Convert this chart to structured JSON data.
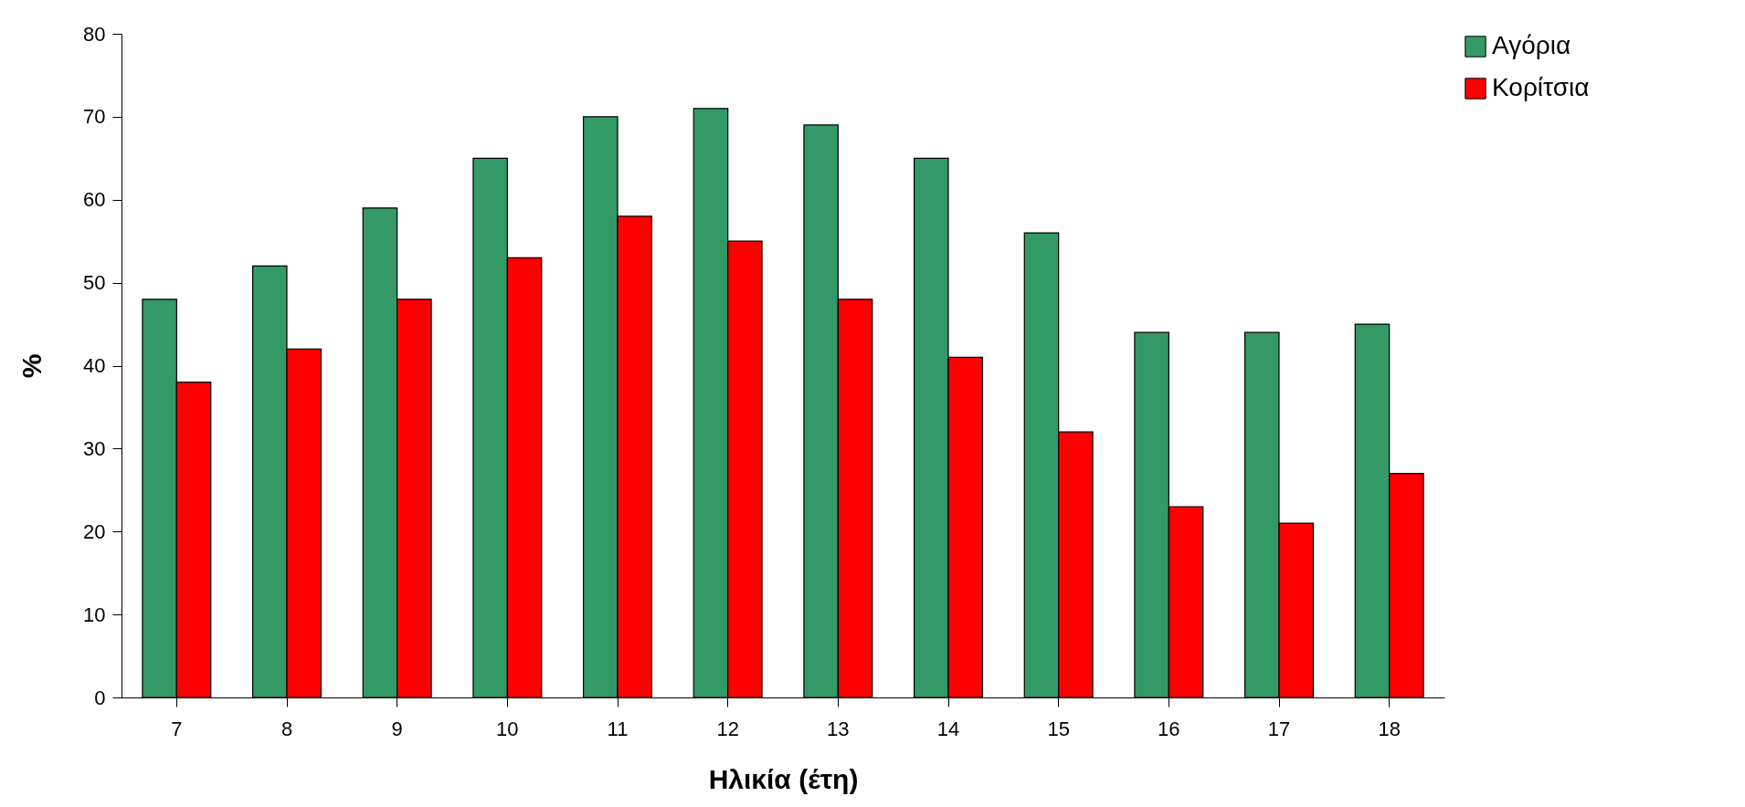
{
  "chart_data": {
    "type": "bar",
    "xlabel": "Ηλικία (έτη)",
    "ylabel": "%",
    "categories": [
      "7",
      "8",
      "9",
      "10",
      "11",
      "12",
      "13",
      "14",
      "15",
      "16",
      "17",
      "18"
    ],
    "series": [
      {
        "name": "Αγόρια",
        "color": "#339966",
        "values": [
          48,
          52,
          59,
          65,
          70,
          71,
          69,
          65,
          56,
          44,
          44,
          45
        ]
      },
      {
        "name": "Κορίτσια",
        "color": "#ff0000",
        "values": [
          38,
          42,
          48,
          53,
          58,
          55,
          48,
          41,
          32,
          23,
          21,
          27
        ]
      }
    ],
    "ylim": [
      0,
      80
    ],
    "yticks": [
      0,
      10,
      20,
      30,
      40,
      50,
      60,
      70,
      80
    ],
    "grid": false,
    "legend": "right"
  }
}
